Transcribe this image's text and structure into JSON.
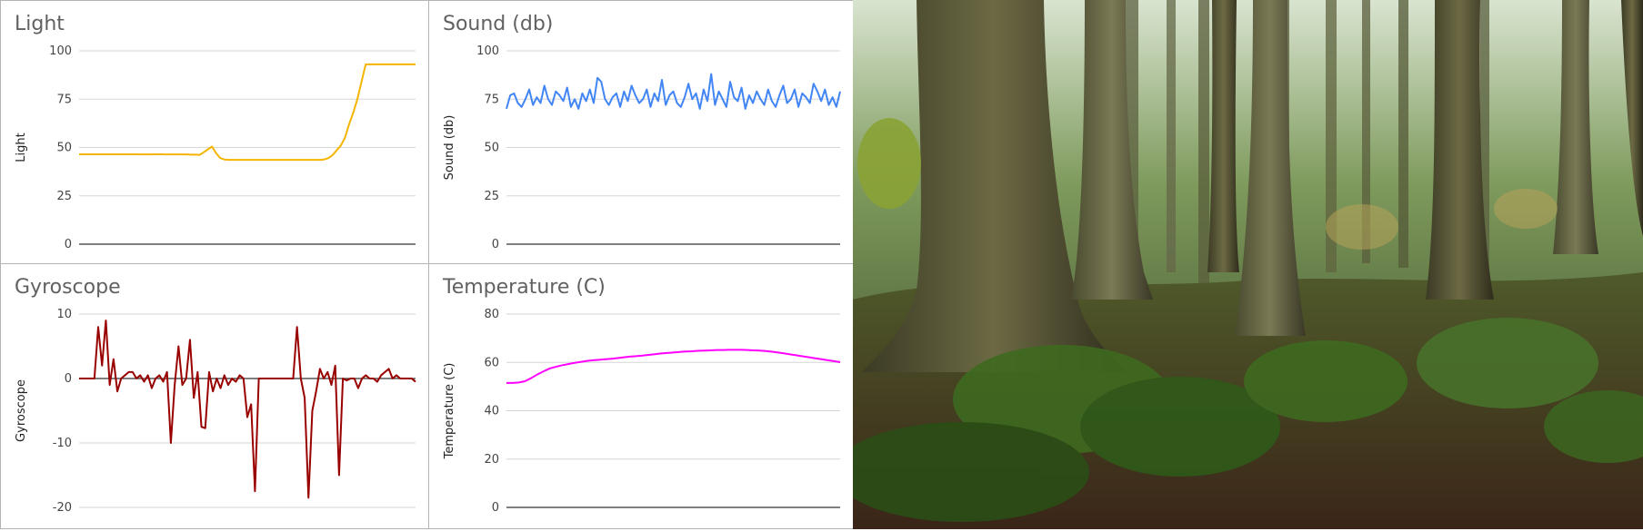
{
  "colors": {
    "light": "#F4B400",
    "sound": "#4285F4",
    "gyroscope": "#990000",
    "temperature": "#FF00FF"
  },
  "photo": {
    "icon": "forest-photo"
  },
  "chart_data": [
    {
      "id": "light",
      "type": "line",
      "title": "Light",
      "xlabel": "",
      "ylabel": "Light",
      "ylim": [
        0,
        100
      ],
      "yticks": [
        "0",
        "25",
        "50",
        "75",
        "100"
      ],
      "grid": true,
      "series": [
        {
          "values": [
            46.5,
            46.5,
            46.5,
            46.5,
            46.5,
            46.5,
            46.5,
            46.5,
            46.5,
            46.5,
            46.5,
            46.5,
            46.5,
            46.5,
            46.5,
            46.4,
            46.5,
            46.4,
            46.5,
            46.5,
            46.5,
            46.4,
            46.4,
            46.4,
            46.4,
            46.4,
            46.4,
            46.3,
            46.3,
            46.2,
            47.5,
            49.0,
            50.5,
            47.0,
            44.5,
            43.8,
            43.6,
            43.6,
            43.6,
            43.6,
            43.6,
            43.6,
            43.6,
            43.6,
            43.6,
            43.6,
            43.6,
            43.6,
            43.6,
            43.6,
            43.6,
            43.6,
            43.6,
            43.6,
            43.6,
            43.6,
            43.6,
            43.6,
            43.6,
            43.8,
            44.5,
            46.0,
            48.5,
            51.0,
            55.0,
            62.0,
            68.0,
            75.0,
            84.0,
            93.0,
            93.0,
            93.0,
            93.0,
            93.0,
            93.0,
            93.0,
            93.0,
            93.0,
            93.0,
            93.0,
            93.0,
            93.0
          ]
        }
      ]
    },
    {
      "id": "sound",
      "type": "line",
      "title": "Sound (db)",
      "xlabel": "",
      "ylabel": "Sound (db)",
      "ylim": [
        0,
        100
      ],
      "yticks": [
        "0",
        "25",
        "50",
        "75",
        "100"
      ],
      "grid": true,
      "series": [
        {
          "values": [
            70,
            77,
            78,
            73,
            71,
            75,
            80,
            72,
            76,
            73,
            82,
            75,
            72,
            79,
            77,
            74,
            81,
            71,
            75,
            70,
            78,
            74,
            80,
            73,
            86,
            84,
            75,
            72,
            76,
            78,
            71,
            79,
            74,
            82,
            77,
            73,
            75,
            80,
            71,
            78,
            74,
            85,
            72,
            77,
            79,
            73,
            71,
            76,
            83,
            75,
            78,
            70,
            80,
            74,
            88,
            72,
            79,
            75,
            71,
            84,
            76,
            74,
            81,
            70,
            77,
            73,
            79,
            75,
            72,
            80,
            74,
            71,
            77,
            82,
            73,
            75,
            80,
            71,
            78,
            76,
            73,
            83,
            79,
            74,
            80,
            72,
            76,
            71,
            79
          ]
        }
      ]
    },
    {
      "id": "gyroscope",
      "type": "line",
      "title": "Gyroscope",
      "xlabel": "",
      "ylabel": "Gyroscope",
      "ylim": [
        -22,
        12
      ],
      "yticks": [
        "-20",
        "-10",
        "0",
        "10"
      ],
      "grid": true,
      "series": [
        {
          "values": [
            0,
            0,
            0,
            0,
            0,
            8,
            2,
            9,
            -1,
            3,
            -2,
            0,
            0.5,
            1,
            1,
            0,
            0.5,
            -0.5,
            0.5,
            -1.5,
            0,
            0.5,
            -0.5,
            1,
            -10,
            -1,
            5,
            -1,
            0,
            6,
            -3,
            1,
            -7.5,
            -7.7,
            1,
            -2,
            0,
            -1.5,
            0.5,
            -1,
            0,
            -0.5,
            0.5,
            0,
            -6,
            -4,
            -17.5,
            0,
            0,
            0,
            0,
            0,
            0,
            0,
            0,
            0,
            0,
            8,
            0,
            -3,
            -18.5,
            -5,
            -2,
            1.5,
            0,
            1,
            -1,
            2,
            -15,
            0,
            -0.3,
            0,
            0,
            -1.5,
            0,
            0.5,
            0,
            0,
            -0.5,
            0.5,
            1,
            1.5,
            0,
            0.5,
            0,
            0,
            0,
            0,
            -0.5
          ]
        }
      ]
    },
    {
      "id": "temperature",
      "type": "line",
      "title": "Temperature (C)",
      "xlabel": "",
      "ylabel": "Temperature (C)",
      "ylim": [
        0,
        80
      ],
      "yticks": [
        "0",
        "20",
        "40",
        "60",
        "80"
      ],
      "grid": true,
      "series": [
        {
          "values": [
            51.5,
            51.5,
            51.7,
            52.2,
            53.5,
            55,
            56.3,
            57.5,
            58.2,
            58.8,
            59.3,
            59.8,
            60.2,
            60.6,
            60.9,
            61.1,
            61.3,
            61.5,
            61.8,
            62.1,
            62.4,
            62.6,
            62.8,
            63.1,
            63.4,
            63.7,
            63.9,
            64.1,
            64.3,
            64.5,
            64.6,
            64.8,
            64.9,
            65,
            65.1,
            65.1,
            65.2,
            65.2,
            65.2,
            65.1,
            65,
            64.9,
            64.7,
            64.4,
            64.1,
            63.7,
            63.3,
            62.9,
            62.5,
            62.1,
            61.7,
            61.3,
            60.9,
            60.5,
            60.1
          ]
        }
      ]
    }
  ]
}
